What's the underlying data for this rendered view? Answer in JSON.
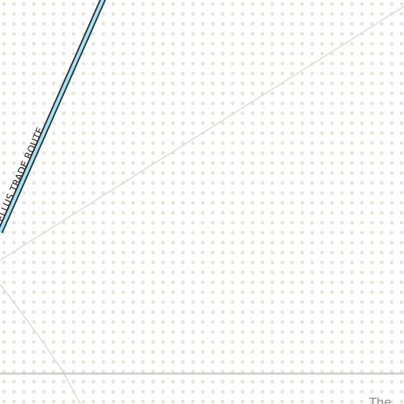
{
  "map": {
    "background_color": "#ffffff",
    "dot_color": "#e4e4d8",
    "route": {
      "label": "ELLUS TRADE ROUTE",
      "fill_color": "#a9e0f0",
      "casing_color": "#1c2a33"
    },
    "road_color": "#dedede",
    "boundary_color": "#c8c8c8",
    "place_label": "The"
  }
}
